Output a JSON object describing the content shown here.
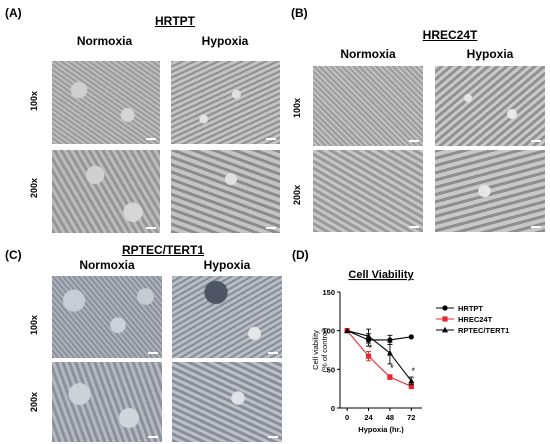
{
  "panels": {
    "A": {
      "label": "(A)",
      "title": "HRTPT",
      "columns": [
        "Normoxia",
        "Hypoxia"
      ],
      "rows": [
        "100x",
        "200x"
      ]
    },
    "B": {
      "label": "(B)",
      "title": "HREC24T",
      "columns": [
        "Normoxia",
        "Hypoxia"
      ],
      "rows": [
        "100x",
        "200x"
      ]
    },
    "C": {
      "label": "(C)",
      "title": "RPTEC/TERT1",
      "columns": [
        "Normoxia",
        "Hypoxia"
      ],
      "rows": [
        "100x",
        "200x"
      ]
    },
    "D": {
      "label": "(D)"
    }
  },
  "chart_data": {
    "type": "line",
    "title": "Cell Viability",
    "xlabel": "Hypoxia (hr.)",
    "ylabel_line1": "Cell viability",
    "ylabel_line2": "(% of control)",
    "x": [
      0,
      24,
      48,
      72
    ],
    "xticks": [
      "0",
      "24",
      "48",
      "72"
    ],
    "yticks": [
      "0",
      "50",
      "100",
      "150"
    ],
    "xlim": [
      -8,
      84
    ],
    "ylim": [
      0,
      150
    ],
    "legend_position": "top-right",
    "series": [
      {
        "name": "HRTPT",
        "values": [
          100,
          88,
          88,
          92
        ],
        "errors": [
          0,
          8,
          6,
          0
        ],
        "color": "#000000",
        "marker": "circle"
      },
      {
        "name": "HREC24T",
        "values": [
          100,
          67,
          40,
          28
        ],
        "errors": [
          0,
          6,
          3,
          3
        ],
        "color": "#e8262b",
        "marker": "square"
      },
      {
        "name": "RPTEC/TERT1",
        "values": [
          100,
          93,
          71,
          35
        ],
        "errors": [
          0,
          9,
          14,
          5
        ],
        "color": "#000000",
        "marker": "triangle"
      }
    ],
    "annotations": [
      {
        "text": "*",
        "x": 24,
        "y": 74
      },
      {
        "text": "*",
        "x": 48,
        "y": 48
      },
      {
        "text": "*",
        "x": 72,
        "y": 44
      }
    ]
  }
}
